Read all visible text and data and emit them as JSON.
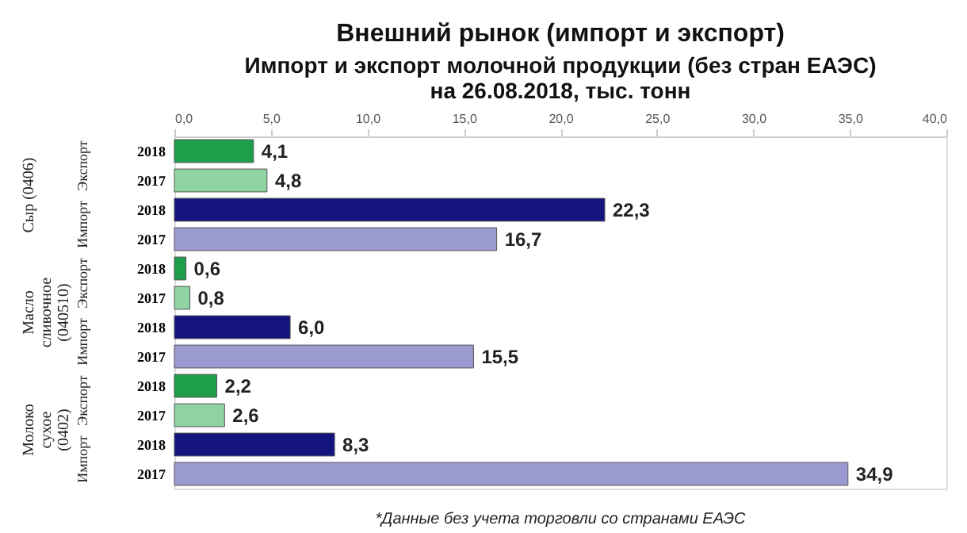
{
  "chart_data": {
    "type": "bar",
    "orientation": "horizontal",
    "title": "Внешний рынок (импорт и экспорт)",
    "subtitle": "Импорт и экспорт молочной продукции (без стран ЕАЭС)\nна 26.08.2018, тыс. тонн",
    "categories": [
      "2018",
      "2017",
      "2018",
      "2017",
      "2018",
      "2017",
      "2018",
      "2017",
      "2018",
      "2017",
      "2018",
      "2017"
    ],
    "values": [
      4.1,
      4.8,
      22.3,
      16.7,
      0.6,
      0.8,
      6.0,
      15.5,
      2.2,
      2.6,
      8.3,
      34.9
    ],
    "value_labels": [
      "4,1",
      "4,8",
      "22,3",
      "16,7",
      "0,6",
      "0,8",
      "6,0",
      "15,5",
      "2,2",
      "2,6",
      "8,3",
      "34,9"
    ],
    "colors": [
      "#1e9e4a",
      "#8fd3a2",
      "#14147f",
      "#9a9ad0",
      "#1e9e4a",
      "#8fd3a2",
      "#14147f",
      "#9a9ad0",
      "#1e9e4a",
      "#8fd3a2",
      "#14147f",
      "#9a9ad0"
    ],
    "xlim": [
      0,
      40
    ],
    "xticks": [
      {
        "value": 0,
        "label": "0,0"
      },
      {
        "value": 5,
        "label": "5,0"
      },
      {
        "value": 10,
        "label": "10,0"
      },
      {
        "value": 15,
        "label": "15,0"
      },
      {
        "value": 20,
        "label": "20,0"
      },
      {
        "value": 25,
        "label": "25,0"
      },
      {
        "value": 30,
        "label": "30,0"
      },
      {
        "value": 35,
        "label": "35,0"
      },
      {
        "value": 40,
        "label": "40,0"
      }
    ],
    "annotations": [
      "Сыр (0406)",
      "Масло сливочное (040510)",
      "Молоко сухое (0402)",
      "Экспорт",
      "Импорт",
      "Экспорт",
      "Импорт",
      "Экспорт",
      "Импорт",
      "*Данные без учета торговли со странами ЕАЭС"
    ]
  }
}
